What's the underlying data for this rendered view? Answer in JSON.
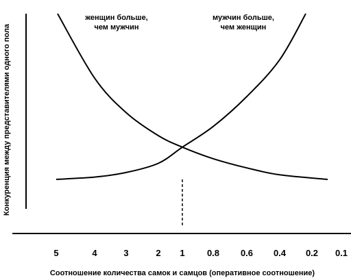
{
  "chart_data": {
    "type": "line",
    "title": "",
    "xlabel": "Соотношение количества самок и самцов (оперативное соотношение)",
    "ylabel": "Конкуренция между представителями одного пола",
    "x_ticks": [
      "5",
      "4",
      "3",
      "2",
      "1",
      "0.8",
      "0.6",
      "0.4",
      "0.2",
      "0.1"
    ],
    "annotations": [
      {
        "lines": [
          "женщин больше,",
          "чем мужчин"
        ]
      },
      {
        "lines": [
          "мужчин больше,",
          "чем женщин"
        ]
      }
    ],
    "series": [
      {
        "curve": "falling",
        "x": [
          "5",
          "4",
          "3",
          "2",
          "1",
          "0.8",
          "0.6",
          "0.4",
          "0.2"
        ],
        "values": [
          1.0,
          0.72,
          0.57,
          0.47,
          0.42,
          0.37,
          0.33,
          0.3,
          0.28
        ]
      },
      {
        "curve": "rising",
        "x": [
          "5",
          "4",
          "3",
          "2",
          "1",
          "0.8",
          "0.6",
          "0.4",
          "0.2"
        ],
        "values": [
          0.28,
          0.29,
          0.31,
          0.35,
          0.42,
          0.51,
          0.64,
          0.8,
          1.0
        ]
      }
    ],
    "reference_line": {
      "x": "1",
      "style": "dashed"
    },
    "grid": false,
    "legend": "none"
  }
}
